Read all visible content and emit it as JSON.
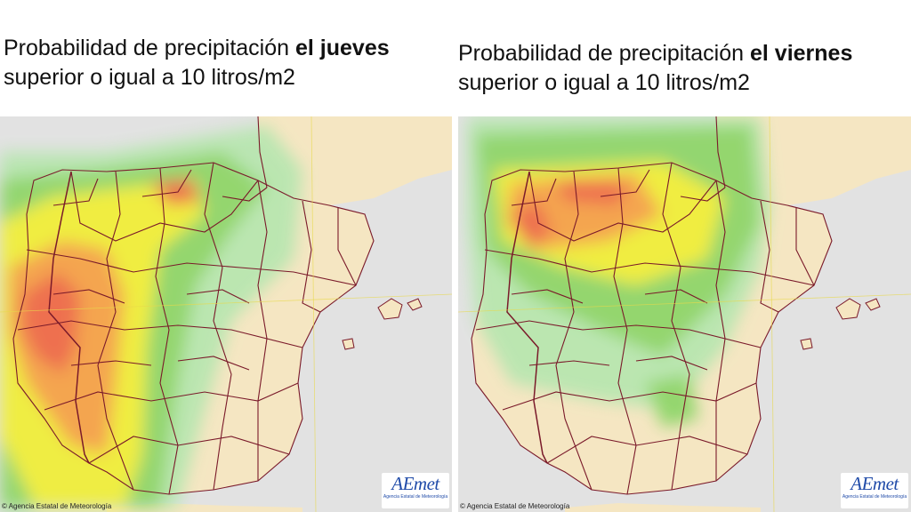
{
  "panels": [
    {
      "title_regular_1": "Probabilidad de precipitación ",
      "title_bold": "el jueves",
      "title_line_2": "superior o igual a 10 litros/m2",
      "copyright": "© Agencia Estatal de Meteorología",
      "logo_text": "AEmet",
      "logo_subtext": "Agencia Estatal de Meteorología"
    },
    {
      "title_regular_1": "Probabilidad de precipitación ",
      "title_bold": "el viernes",
      "title_line_2": "superior o igual a 10 litros/m2",
      "copyright": "© Agencia Estatal de Meteorología",
      "logo_text": "AEmet",
      "logo_subtext": "Agencia Estatal de Meteorología"
    }
  ],
  "colors": {
    "land": "#f5e6c2",
    "sea": "#e2e2e2",
    "borders": "#7a1a2a",
    "prob_low": "#b8e6b0",
    "prob_mid": "#8fd66a",
    "prob_yellow": "#f0ee3a",
    "prob_orange": "#f4a24a",
    "prob_high": "#ee6a4a"
  }
}
